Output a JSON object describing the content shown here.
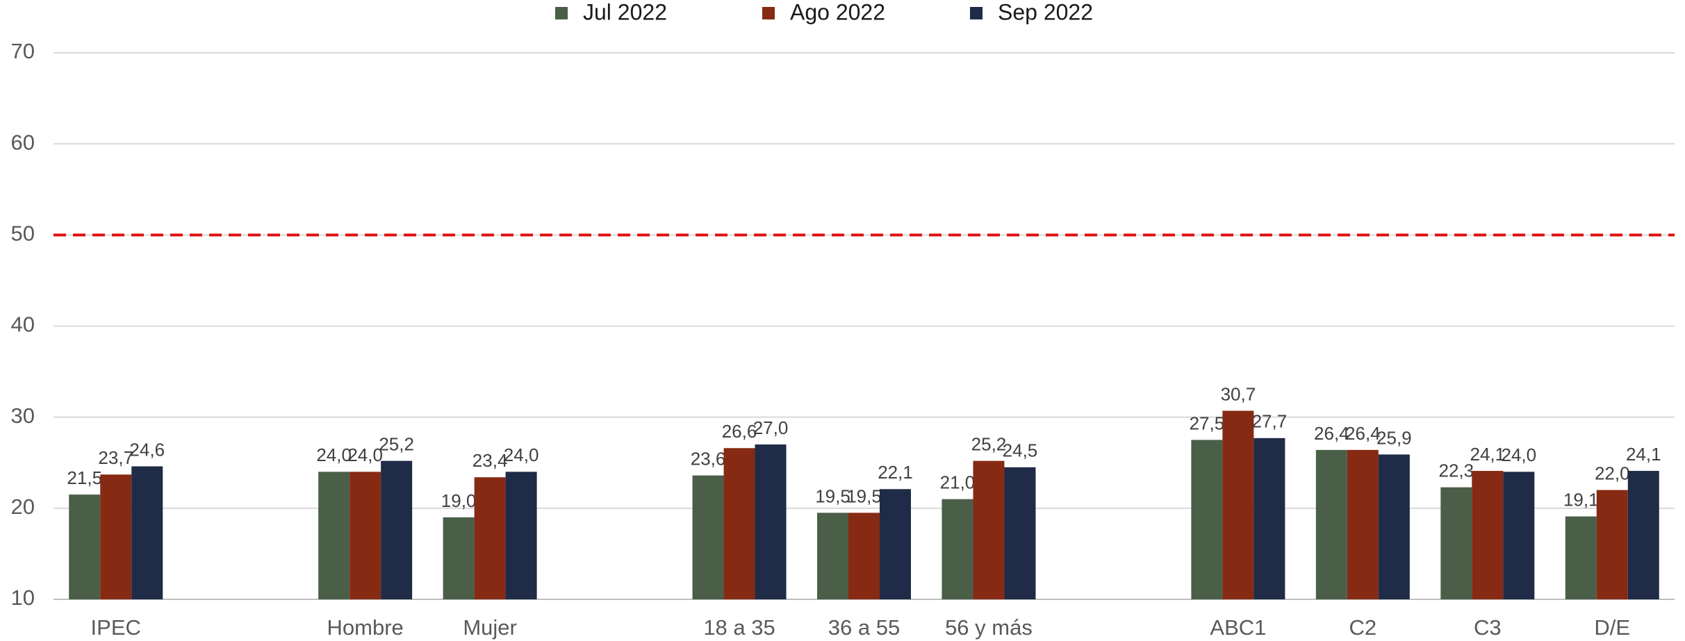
{
  "chart_data": {
    "type": "bar",
    "categories": [
      "IPEC",
      null,
      "Hombre",
      "Mujer",
      null,
      "18 a 35",
      "36 a 55",
      "56 y más",
      null,
      "ABC1",
      "C2",
      "C3",
      "D/E"
    ],
    "series": [
      {
        "name": "Jul 2022",
        "color": "#4a5e48",
        "values": [
          21.5,
          null,
          24.0,
          19.0,
          null,
          23.6,
          19.5,
          21.0,
          null,
          27.5,
          26.4,
          22.3,
          19.1
        ],
        "value_labels": [
          "21,5",
          null,
          "24,0",
          "19,0",
          null,
          "23,6",
          "19,5",
          "21,0",
          null,
          "27,5",
          "26,4",
          "22,3",
          "19,1"
        ]
      },
      {
        "name": "Ago 2022",
        "color": "#862a14",
        "values": [
          23.7,
          null,
          24.0,
          23.4,
          null,
          26.6,
          19.5,
          25.2,
          null,
          30.7,
          26.4,
          24.1,
          22.0
        ],
        "value_labels": [
          "23,7",
          null,
          "24,0",
          "23,4",
          null,
          "26,6",
          "19,5",
          "25,2",
          null,
          "30,7",
          "26,4",
          "24,1",
          "22,0"
        ]
      },
      {
        "name": "Sep 2022",
        "color": "#1f2b47",
        "values": [
          24.6,
          null,
          25.2,
          24.0,
          null,
          27.0,
          22.1,
          24.5,
          null,
          27.7,
          25.9,
          24.0,
          24.1
        ],
        "value_labels": [
          "24,6",
          null,
          "25,2",
          "24,0",
          null,
          "27,0",
          "22,1",
          "24,5",
          null,
          "27,7",
          "25,9",
          "24,0",
          "24,1"
        ]
      }
    ],
    "ylim": [
      10,
      70
    ],
    "yticks": [
      10,
      20,
      30,
      40,
      50,
      60,
      70
    ],
    "grid": true,
    "reference_line": {
      "value": 50,
      "color": "#e01010"
    },
    "legend": "top"
  }
}
